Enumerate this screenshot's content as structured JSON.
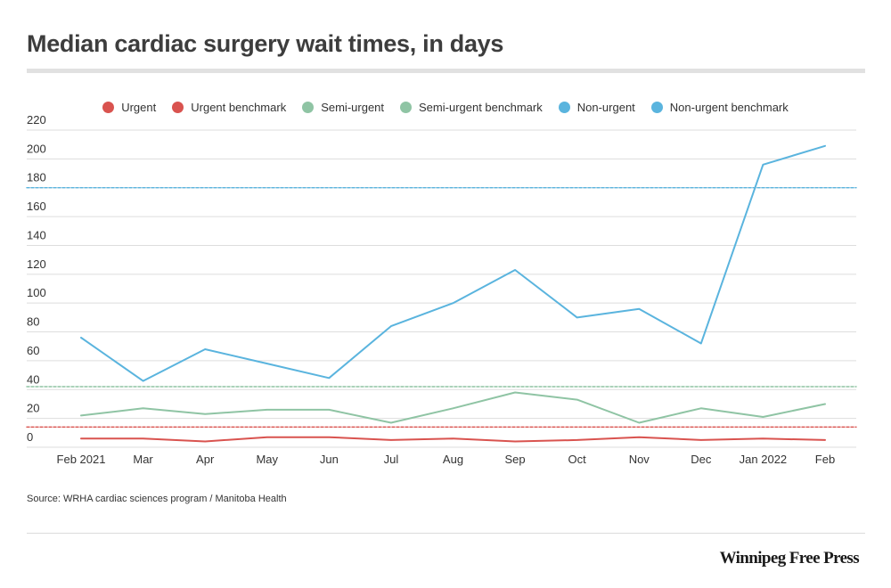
{
  "chart_data": {
    "type": "line",
    "title": "Median cardiac surgery wait times, in days",
    "categories": [
      "Feb 2021",
      "Mar",
      "Apr",
      "May",
      "Jun",
      "Jul",
      "Aug",
      "Sep",
      "Oct",
      "Nov",
      "Dec",
      "Jan 2022",
      "Feb"
    ],
    "ylim": [
      0,
      220
    ],
    "yticks": [
      0,
      20,
      40,
      60,
      80,
      100,
      120,
      140,
      160,
      180,
      200,
      220
    ],
    "grid": true,
    "legend_position": "top",
    "series": [
      {
        "name": "Urgent",
        "color": "#d9534f",
        "style": "solid",
        "values": [
          6,
          6,
          4,
          7,
          7,
          5,
          6,
          4,
          5,
          7,
          5,
          6,
          5
        ]
      },
      {
        "name": "Urgent benchmark",
        "color": "#d9534f",
        "style": "dashed",
        "values": [
          14,
          14,
          14,
          14,
          14,
          14,
          14,
          14,
          14,
          14,
          14,
          14,
          14
        ]
      },
      {
        "name": "Semi-urgent",
        "color": "#8fc4a4",
        "style": "solid",
        "values": [
          22,
          27,
          23,
          26,
          26,
          17,
          27,
          38,
          33,
          17,
          27,
          21,
          30
        ]
      },
      {
        "name": "Semi-urgent benchmark",
        "color": "#8fc4a4",
        "style": "dashed",
        "values": [
          42,
          42,
          42,
          42,
          42,
          42,
          42,
          42,
          42,
          42,
          42,
          42,
          42
        ]
      },
      {
        "name": "Non-urgent",
        "color": "#5ab4de",
        "style": "solid",
        "values": [
          76,
          46,
          68,
          58,
          48,
          84,
          100,
          123,
          90,
          96,
          72,
          196,
          209
        ]
      },
      {
        "name": "Non-urgent benchmark",
        "color": "#5ab4de",
        "style": "dashed",
        "values": [
          180,
          180,
          180,
          180,
          180,
          180,
          180,
          180,
          180,
          180,
          180,
          180,
          180
        ]
      }
    ]
  },
  "source": "Source: WRHA cardiac sciences program  / Manitoba Health",
  "brand": "Winnipeg Free Press"
}
